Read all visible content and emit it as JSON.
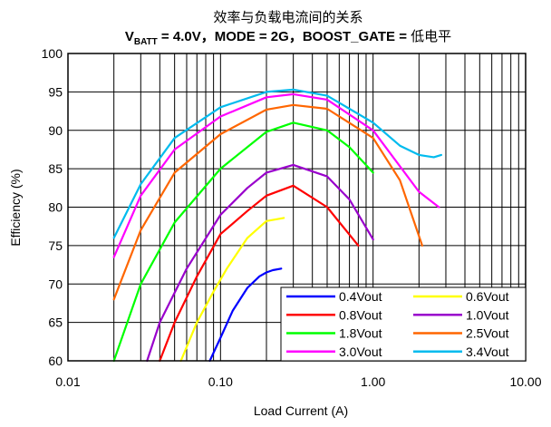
{
  "chart_data": {
    "type": "line",
    "title": "效率与负载电流间的关系",
    "subtitle": {
      "v_prefix": "V",
      "v_sub": "BATT",
      "rest": " = 4.0V，MODE = 2G，BOOST_GATE = ",
      "suffix": "低电平"
    },
    "xlabel": "Load Current (A)",
    "ylabel": "Efficiency (%)",
    "x_scale": "log",
    "xlim": [
      0.01,
      10
    ],
    "ylim": [
      60,
      100
    ],
    "x_ticks": [
      {
        "value": 0.01,
        "label": "0.01"
      },
      {
        "value": 0.1,
        "label": "0.10"
      },
      {
        "value": 1,
        "label": "1.00"
      },
      {
        "value": 10,
        "label": "10.00"
      }
    ],
    "y_ticks": [
      {
        "value": 60,
        "label": "60"
      },
      {
        "value": 65,
        "label": "65"
      },
      {
        "value": 70,
        "label": "70"
      },
      {
        "value": 75,
        "label": "75"
      },
      {
        "value": 80,
        "label": "80"
      },
      {
        "value": 85,
        "label": "85"
      },
      {
        "value": 90,
        "label": "90"
      },
      {
        "value": 95,
        "label": "95"
      },
      {
        "value": 100,
        "label": "100"
      }
    ],
    "grid": true,
    "legend_position": "bottom-right",
    "series": [
      {
        "name": "0.4Vout",
        "color": "#0000ff",
        "x": [
          0.085,
          0.1,
          0.12,
          0.15,
          0.18,
          0.2,
          0.22,
          0.25
        ],
        "y": [
          60,
          63,
          66.5,
          69.5,
          71,
          71.5,
          71.8,
          72
        ]
      },
      {
        "name": "0.6Vout",
        "color": "#ffff00",
        "x": [
          0.055,
          0.07,
          0.09,
          0.11,
          0.15,
          0.2,
          0.26
        ],
        "y": [
          60,
          65,
          69,
          72,
          76,
          78.2,
          78.6
        ]
      },
      {
        "name": "0.8Vout",
        "color": "#ff0000",
        "x": [
          0.04,
          0.05,
          0.07,
          0.1,
          0.15,
          0.2,
          0.3,
          0.5,
          0.8
        ],
        "y": [
          60,
          65,
          71,
          76.5,
          79.5,
          81.5,
          82.8,
          80,
          75
        ]
      },
      {
        "name": "1.0Vout",
        "color": "#9900cc",
        "x": [
          0.033,
          0.04,
          0.06,
          0.1,
          0.15,
          0.2,
          0.3,
          0.5,
          0.7,
          1.0
        ],
        "y": [
          60,
          65,
          72,
          79,
          82.5,
          84.5,
          85.5,
          84,
          81,
          75.8
        ]
      },
      {
        "name": "1.8Vout",
        "color": "#00ff00",
        "x": [
          0.02,
          0.03,
          0.05,
          0.1,
          0.2,
          0.3,
          0.5,
          0.7,
          1.0
        ],
        "y": [
          60,
          70,
          78,
          85,
          89.8,
          91,
          90,
          87.8,
          84.5
        ]
      },
      {
        "name": "2.5Vout",
        "color": "#ff6600",
        "x": [
          0.02,
          0.03,
          0.05,
          0.1,
          0.2,
          0.3,
          0.5,
          1.0,
          1.5,
          2.1
        ],
        "y": [
          68,
          77,
          84.5,
          89.5,
          92.7,
          93.3,
          92.8,
          89,
          83.5,
          75
        ]
      },
      {
        "name": "3.0Vout",
        "color": "#ff00ff",
        "x": [
          0.02,
          0.03,
          0.05,
          0.1,
          0.2,
          0.3,
          0.5,
          1.0,
          2.0,
          2.7
        ],
        "y": [
          73.5,
          81.5,
          87.5,
          91.8,
          94.3,
          94.7,
          94,
          90,
          82,
          80
        ]
      },
      {
        "name": "3.4Vout",
        "color": "#00bbee",
        "x": [
          0.02,
          0.03,
          0.05,
          0.1,
          0.2,
          0.3,
          0.5,
          1.0,
          1.5,
          2.0,
          2.5,
          2.8
        ],
        "y": [
          76,
          83,
          89,
          93,
          95,
          95.3,
          94.5,
          91,
          88,
          86.8,
          86.5,
          86.8
        ]
      }
    ]
  }
}
